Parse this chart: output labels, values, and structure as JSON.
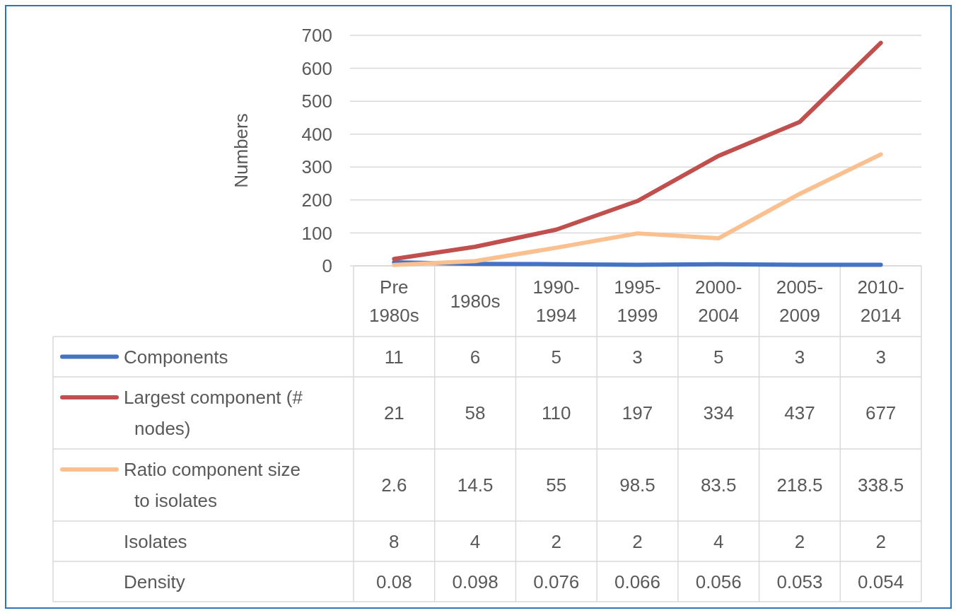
{
  "chart_data": {
    "type": "line",
    "ylabel": "Numbers",
    "categories": [
      "Pre 1980s",
      "1980s",
      "1990-1994",
      "1995-1999",
      "2000-2004",
      "2005-2009",
      "2010-2014"
    ],
    "series": [
      {
        "name": "Components",
        "color": "#4472c4",
        "values": [
          11,
          6,
          5,
          3,
          5,
          3,
          3
        ]
      },
      {
        "name": "Largest component (# nodes)",
        "color": "#c0504d",
        "values": [
          21,
          58,
          110,
          197,
          334,
          437,
          677
        ]
      },
      {
        "name": "Ratio component size to isolates",
        "color": "#fac090",
        "values": [
          2.6,
          14.5,
          55,
          98.5,
          83.5,
          218.5,
          338.5
        ]
      }
    ],
    "annotations": [
      "Isolates",
      "8",
      "4",
      "2",
      "2",
      "4",
      "2",
      "2",
      "Density",
      "0.08",
      "0.098",
      "0.076",
      "0.066",
      "0.056",
      "0.053",
      "0.054"
    ],
    "ylim": [
      0,
      700
    ],
    "yticks": [
      0,
      100,
      200,
      300,
      400,
      500,
      600,
      700
    ],
    "grid": "y",
    "legend": "bottom",
    "data_labels": true
  }
}
